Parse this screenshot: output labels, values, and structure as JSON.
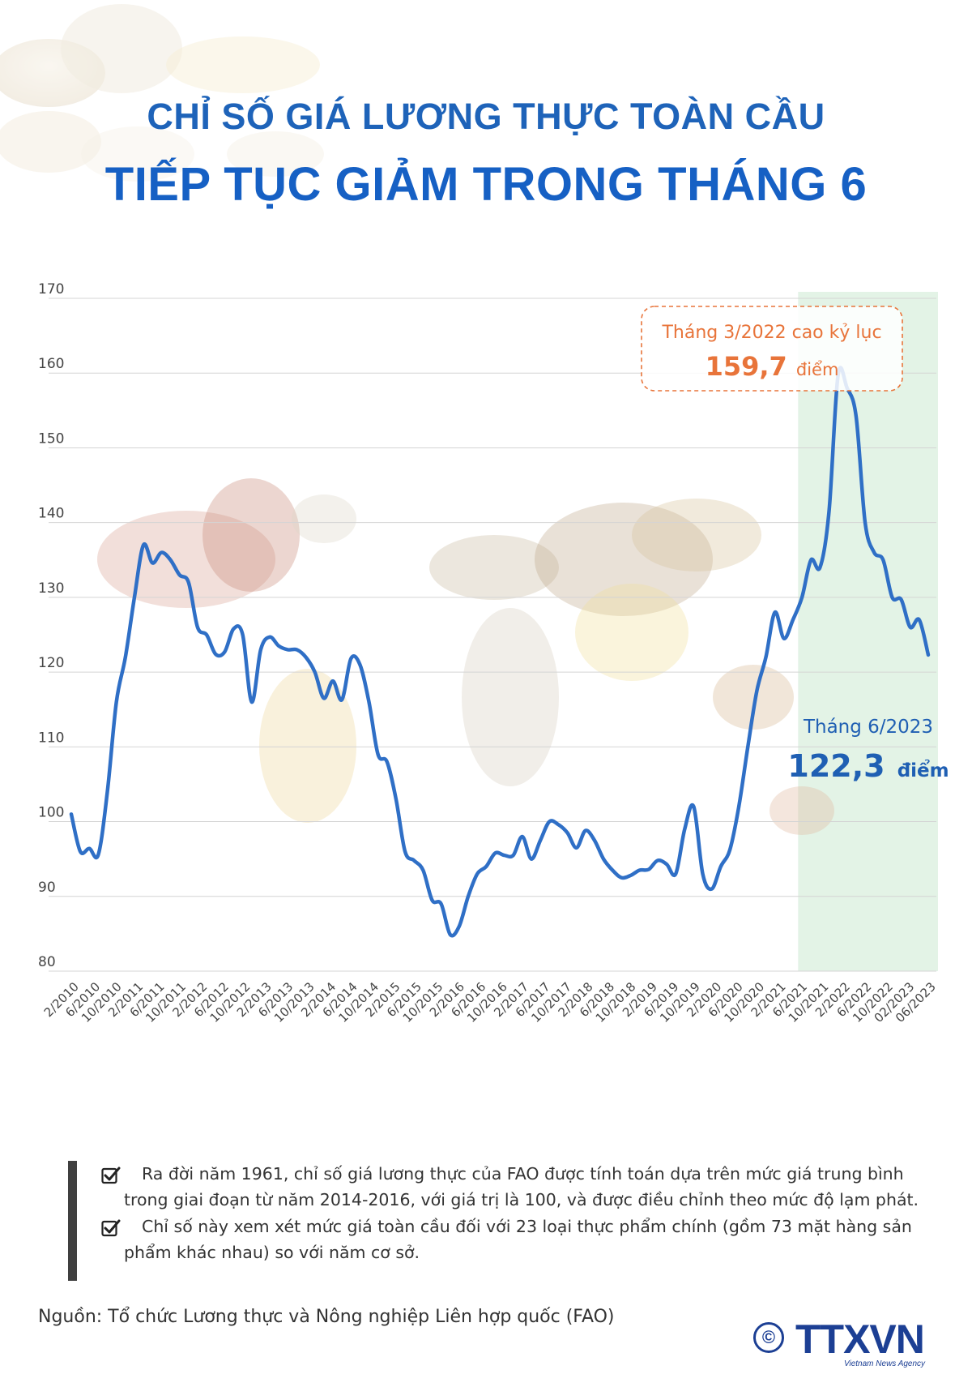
{
  "header": {
    "title_line1": "CHỈ SỐ GIÁ LƯƠNG THỰC TOÀN CẦU",
    "title_line2": "TIẾP TỤC GIẢM TRONG THÁNG 6"
  },
  "annotations": {
    "peak": {
      "label": "Tháng 3/2022 cao kỷ lục",
      "value": "159,7",
      "unit": "điểm"
    },
    "latest": {
      "label": "Tháng 6/2023",
      "value": "122,3",
      "unit": "điểm"
    }
  },
  "notes": [
    "Ra đời năm 1961, chỉ số giá lương thực của FAO được tính toán dựa trên mức giá trung bình trong giai đoạn từ năm 2014-2016, với giá trị là 100, và được điều chỉnh theo mức độ lạm phát.",
    "Chỉ số này xem xét mức giá toàn cầu đối với 23 loại thực phẩm chính (gồm 73 mặt hàng sản phẩm khác nhau) so với năm cơ sở."
  ],
  "source": "Nguồn: Tổ chức Lương thực và Nông nghiệp Liên hợp quốc (FAO)",
  "logo": {
    "text": "TTXVN",
    "sub": "Vietnam News Agency",
    "copyright_symbol": "©"
  },
  "colors": {
    "title": "#1e63b9",
    "line": "#2f6fc6",
    "peak_annotation": "#e8743a",
    "latest_annotation": "#1f5fb3",
    "highlight_band": "#e3f3e6"
  },
  "chart_data": {
    "type": "line",
    "title": "",
    "xlabel": "",
    "ylabel": "",
    "ylim": [
      80,
      170
    ],
    "yticks": [
      80,
      90,
      100,
      110,
      120,
      130,
      140,
      150,
      160,
      170
    ],
    "grid": true,
    "highlight_range": [
      "6/2021",
      "06/2023"
    ],
    "xticks": [
      "2/2010",
      "6/2010",
      "10/2010",
      "2/2011",
      "6/2011",
      "10/2011",
      "2/2012",
      "6/2012",
      "10/2012",
      "2/2013",
      "6/2013",
      "10/2013",
      "2/2014",
      "6/2014",
      "10/2014",
      "2/2015",
      "6/2015",
      "10/2015",
      "2/2016",
      "6/2016",
      "10/2016",
      "2/2017",
      "6/2017",
      "10/2017",
      "2/2018",
      "6/2018",
      "10/2018",
      "2/2019",
      "6/2019",
      "10/2019",
      "2/2020",
      "6/2020",
      "10/2020",
      "2/2021",
      "6/2021",
      "10/2021",
      "2/2022",
      "6/2022",
      "10/2022",
      "02/2023",
      "06/2023"
    ],
    "series": [
      {
        "values": [
          101,
          96,
          96.4,
          95.6,
          104,
          116,
          122,
          130,
          137,
          134.6,
          136,
          135,
          133,
          132,
          126,
          125,
          122.4,
          122.7,
          125.8,
          125,
          116,
          123,
          124.7,
          123.5,
          123,
          123,
          122,
          120,
          116.5,
          118.8,
          116.3,
          121.8,
          121,
          116,
          109,
          108,
          103,
          96,
          94.8,
          93.5,
          89.5,
          89,
          84.9,
          86,
          90,
          93,
          94,
          95.8,
          95.5,
          95.5,
          98,
          95,
          97.5,
          100,
          99.6,
          98.5,
          96.5,
          98.8,
          97.5,
          95,
          93.5,
          92.5,
          92.8,
          93.5,
          93.6,
          94.8,
          94.3,
          93,
          99,
          102,
          93,
          91,
          94,
          96.2,
          102,
          110,
          117.5,
          122,
          128,
          124.5,
          127,
          130,
          135,
          134,
          141.5,
          159.7,
          158,
          154.2,
          140,
          136,
          135,
          130,
          129.7,
          126,
          127,
          122.3
        ]
      }
    ]
  }
}
